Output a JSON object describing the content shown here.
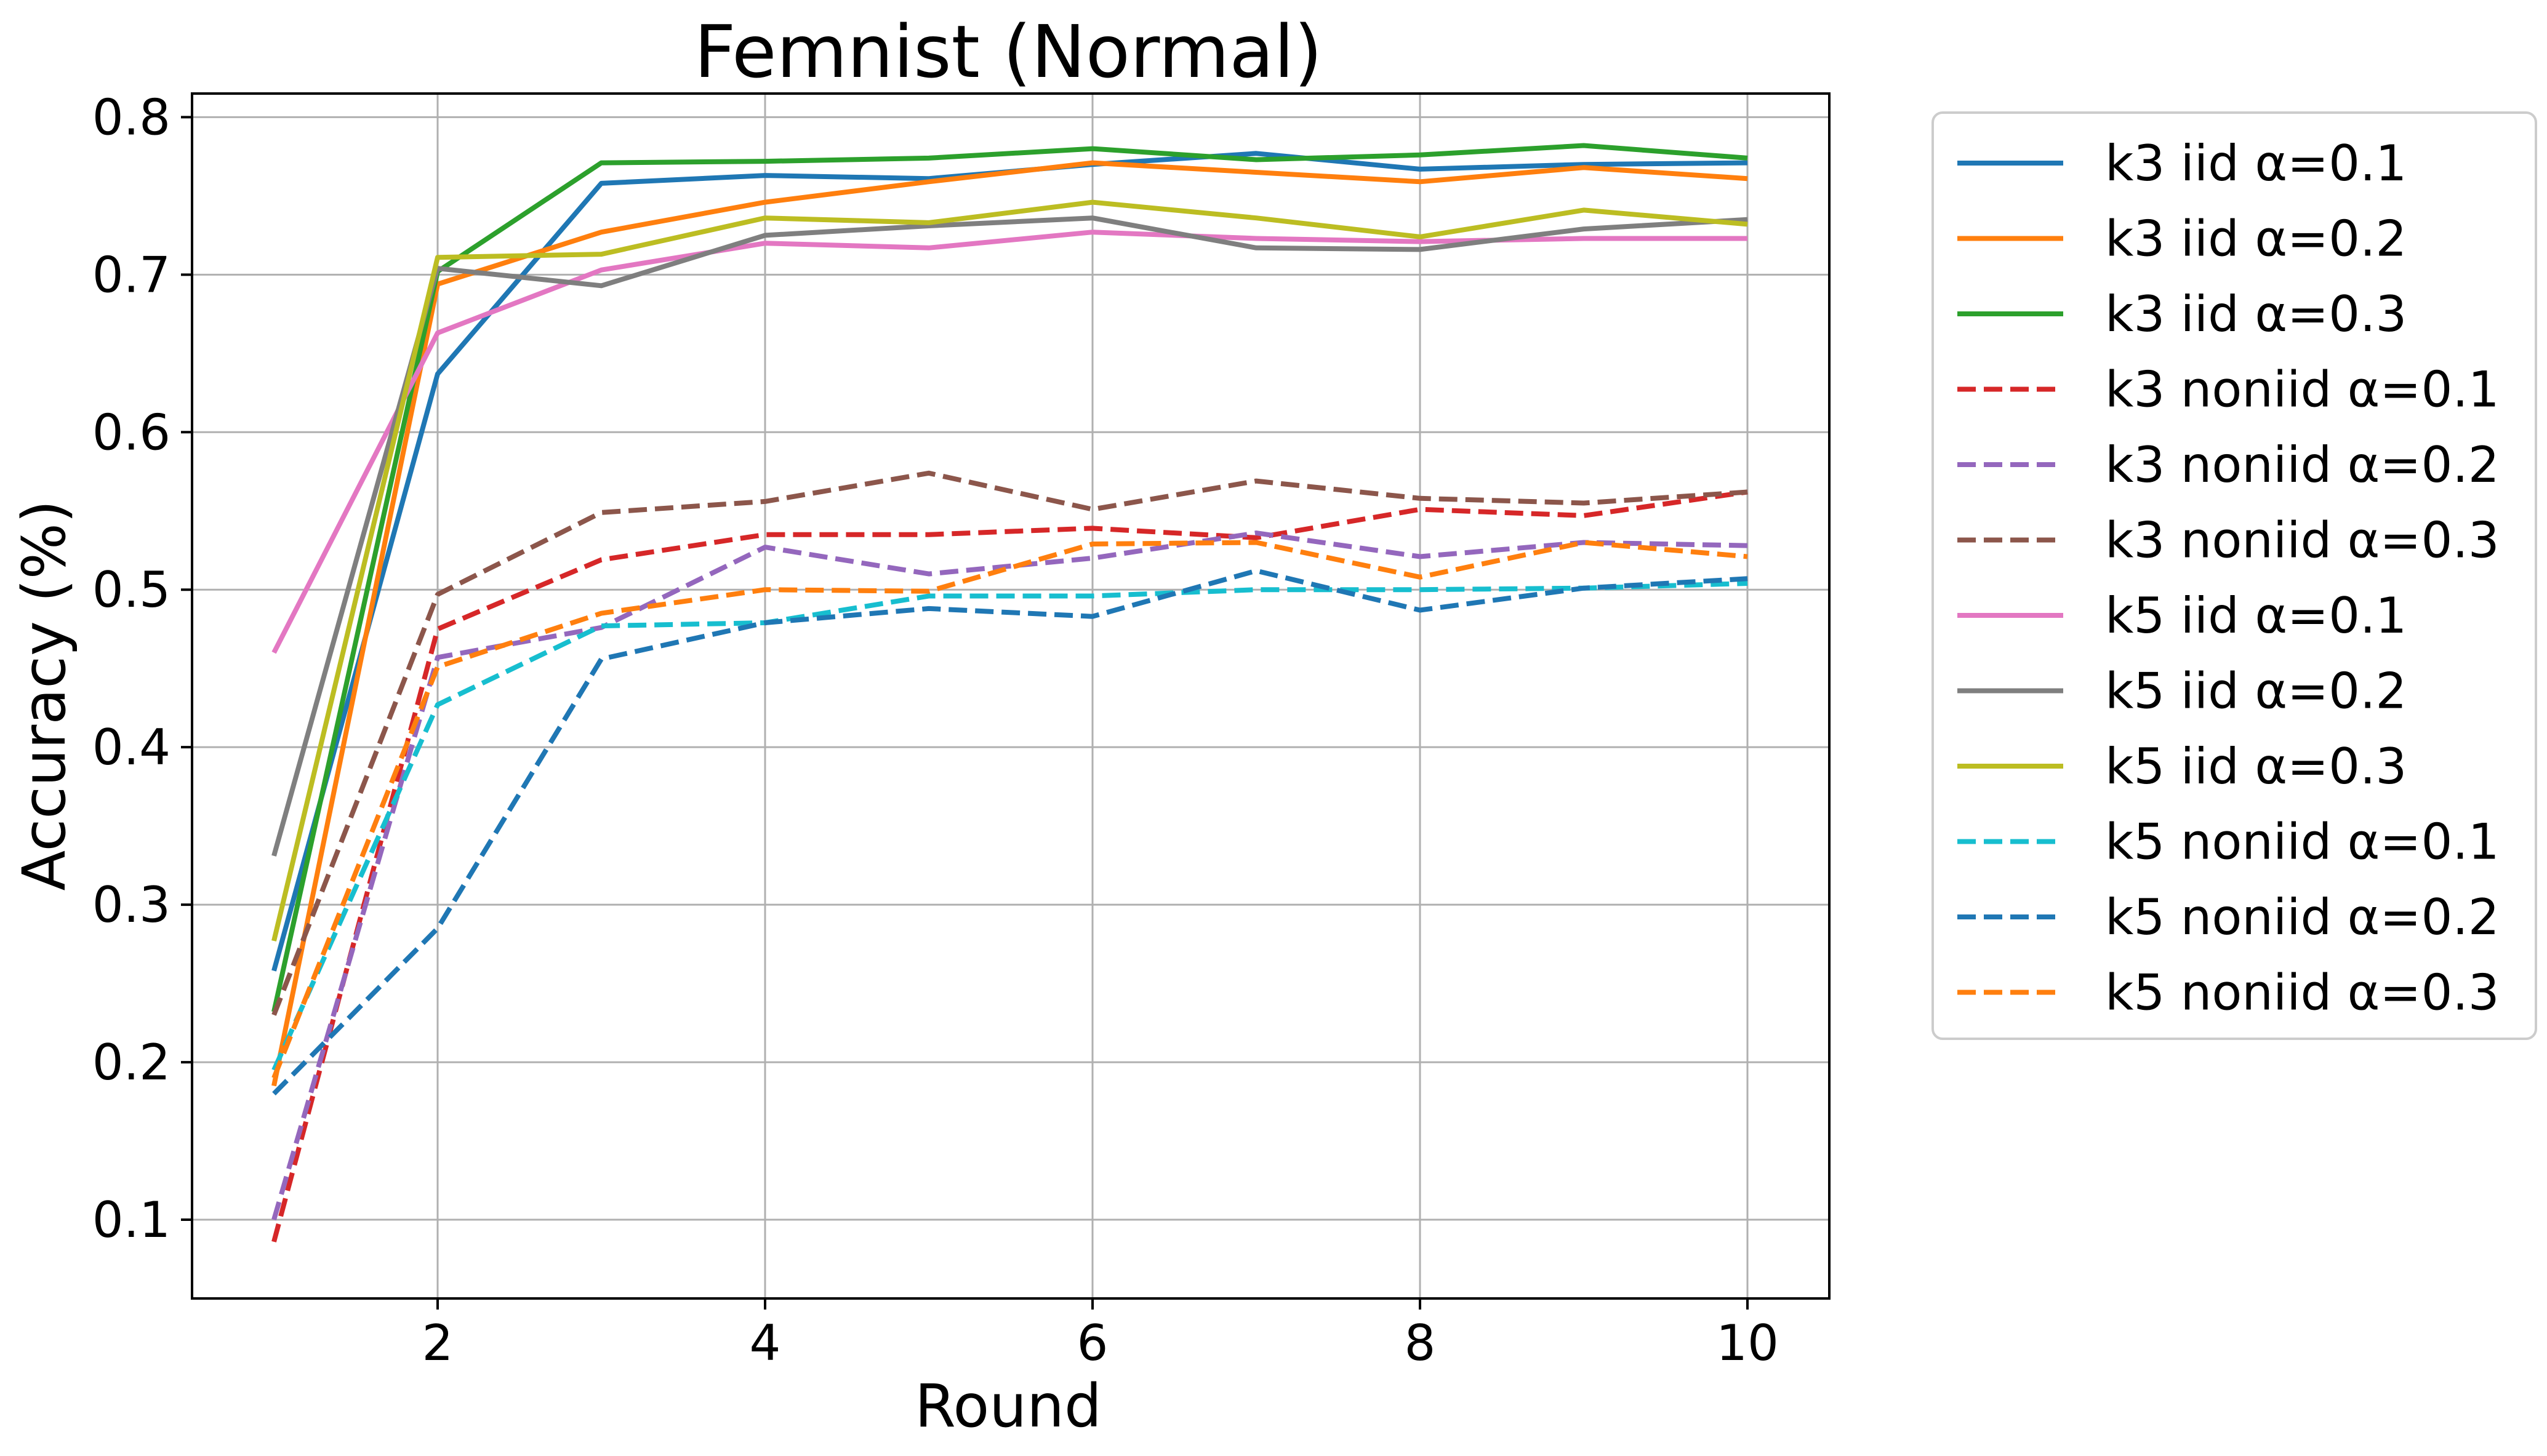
{
  "chart_data": {
    "type": "line",
    "title": "Femnist (Normal)",
    "xlabel": "Round",
    "ylabel": "Accuracy (%)",
    "xlim": [
      0.5,
      10.5
    ],
    "ylim": [
      0.05,
      0.815
    ],
    "x_ticks": [
      2,
      4,
      6,
      8,
      10
    ],
    "y_ticks": [
      0.1,
      0.2,
      0.3,
      0.4,
      0.5,
      0.6,
      0.7,
      0.8
    ],
    "grid": true,
    "legend_position": "outside-right",
    "x": [
      1,
      2,
      3,
      4,
      5,
      6,
      7,
      8,
      9,
      10
    ],
    "series": [
      {
        "name": "k3 iid α=0.1",
        "color": "#1f77b4",
        "style": "solid",
        "values": [
          0.258,
          0.637,
          0.758,
          0.763,
          0.761,
          0.77,
          0.777,
          0.767,
          0.77,
          0.771
        ]
      },
      {
        "name": "k3 iid α=0.2",
        "color": "#ff7f0e",
        "style": "solid",
        "values": [
          0.185,
          0.694,
          0.727,
          0.746,
          0.759,
          0.771,
          0.765,
          0.759,
          0.768,
          0.761
        ]
      },
      {
        "name": "k3 iid α=0.3",
        "color": "#2ca02c",
        "style": "solid",
        "values": [
          0.232,
          0.702,
          0.771,
          0.772,
          0.774,
          0.78,
          0.773,
          0.776,
          0.782,
          0.774
        ]
      },
      {
        "name": "k3 noniid α=0.1",
        "color": "#d62728",
        "style": "dashed",
        "values": [
          0.086,
          0.475,
          0.519,
          0.535,
          0.535,
          0.539,
          0.533,
          0.551,
          0.547,
          0.562
        ]
      },
      {
        "name": "k3 noniid α=0.2",
        "color": "#9467bd",
        "style": "dashed",
        "values": [
          0.1,
          0.457,
          0.476,
          0.527,
          0.51,
          0.52,
          0.536,
          0.521,
          0.53,
          0.528
        ]
      },
      {
        "name": "k3 noniid α=0.3",
        "color": "#8c564b",
        "style": "dashed",
        "values": [
          0.23,
          0.497,
          0.549,
          0.556,
          0.574,
          0.551,
          0.569,
          0.558,
          0.555,
          0.562
        ]
      },
      {
        "name": "k5 iid α=0.1",
        "color": "#e377c2",
        "style": "solid",
        "values": [
          0.46,
          0.663,
          0.703,
          0.72,
          0.717,
          0.727,
          0.723,
          0.721,
          0.723,
          0.723
        ]
      },
      {
        "name": "k5 iid α=0.2",
        "color": "#7f7f7f",
        "style": "solid",
        "values": [
          0.331,
          0.704,
          0.693,
          0.725,
          0.731,
          0.736,
          0.717,
          0.716,
          0.729,
          0.735
        ]
      },
      {
        "name": "k5 iid α=0.3",
        "color": "#bcbd22",
        "style": "solid",
        "values": [
          0.277,
          0.711,
          0.713,
          0.736,
          0.733,
          0.746,
          0.736,
          0.724,
          0.741,
          0.732
        ]
      },
      {
        "name": "k5 noniid α=0.1",
        "color": "#17becf",
        "style": "dashed",
        "values": [
          0.195,
          0.427,
          0.477,
          0.479,
          0.496,
          0.496,
          0.5,
          0.5,
          0.501,
          0.504
        ]
      },
      {
        "name": "k5 noniid α=0.2",
        "color": "#1f77b4",
        "style": "dashed",
        "values": [
          0.18,
          0.285,
          0.456,
          0.479,
          0.488,
          0.483,
          0.512,
          0.487,
          0.501,
          0.507
        ]
      },
      {
        "name": "k5 noniid α=0.3",
        "color": "#ff7f0e",
        "style": "dashed",
        "values": [
          0.19,
          0.451,
          0.485,
          0.5,
          0.499,
          0.529,
          0.53,
          0.508,
          0.53,
          0.521
        ]
      }
    ]
  }
}
